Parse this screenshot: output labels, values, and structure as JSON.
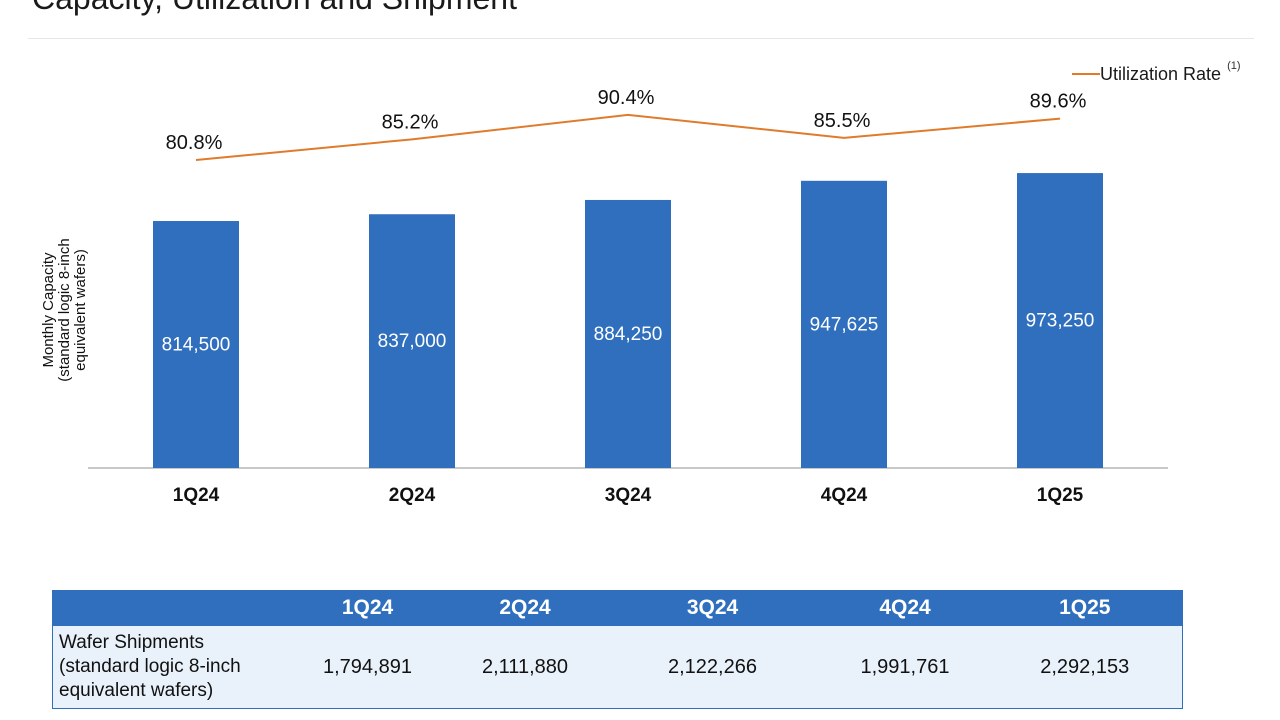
{
  "page": {
    "title": "Capacity, Utilization and Shipment"
  },
  "colors": {
    "bar": "#2F6FBE",
    "line": "#E07B2B",
    "table_header": "#2F6FBE",
    "table_body": "#E9F1FA"
  },
  "chart_data": {
    "type": "bar",
    "title": "",
    "categories": [
      "1Q24",
      "2Q24",
      "3Q24",
      "4Q24",
      "1Q25"
    ],
    "series": [
      {
        "name": "Monthly Capacity",
        "type": "bar",
        "values": [
          814500,
          837000,
          884250,
          947625,
          973250
        ],
        "labels": [
          "814,500",
          "837,000",
          "884,250",
          "947,625",
          "973,250"
        ]
      },
      {
        "name": "Utilization Rate",
        "type": "line",
        "values": [
          80.8,
          85.2,
          90.4,
          85.5,
          89.6
        ],
        "labels": [
          "80.8%",
          "85.2%",
          "90.4%",
          "85.5%",
          "89.6%"
        ]
      }
    ],
    "ylabel": "Monthly Capacity (standard logic 8-inch equivalent wafers)",
    "ylabel_lines": [
      "Monthly Capacity",
      "(standard logic 8-inch",
      "equivalent wafers)"
    ],
    "xlabel": "",
    "bar_ylim": [
      0,
      1000000
    ],
    "line_ylim": [
      0,
      100
    ],
    "legend": {
      "label": "Utilization Rate",
      "note": "(1)",
      "position": "top-right"
    }
  },
  "table": {
    "headers": [
      "",
      "1Q24",
      "2Q24",
      "3Q24",
      "4Q24",
      "1Q25"
    ],
    "row_label_lines": [
      "Wafer Shipments",
      "(standard logic 8-inch",
      "equivalent wafers)"
    ],
    "values": [
      "1,794,891",
      "2,111,880",
      "2,122,266",
      "1,991,761",
      "2,292,153"
    ]
  }
}
